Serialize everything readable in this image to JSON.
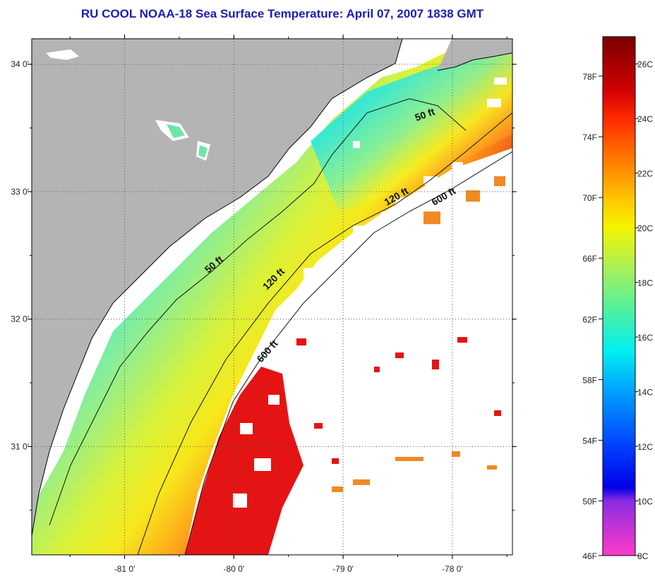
{
  "title": "RU COOL  NOAA-18  Sea Surface Temperature:  April 07, 2007 1838 GMT",
  "map": {
    "lon_range": [
      -81.85,
      -77.45
    ],
    "lat_range": [
      30.15,
      34.2
    ],
    "lon_ticks": [
      {
        "value": -81,
        "label": "-81 0'"
      },
      {
        "value": -80,
        "label": "-80 0'"
      },
      {
        "value": -79,
        "label": "-79 0'"
      },
      {
        "value": -78,
        "label": "-78 0'"
      }
    ],
    "lat_ticks": [
      {
        "value": 34,
        "label": "34 0'"
      },
      {
        "value": 33,
        "label": "33 0'"
      },
      {
        "value": 32,
        "label": "32 0'"
      },
      {
        "value": 31,
        "label": "31 0'"
      }
    ],
    "colors": {
      "land": "#b4b4b4",
      "cloud": "#ffffff",
      "cold_shelf": "#22e6e6",
      "mid_shelf": "#8cf08c",
      "outer_shelf": "#f5f522",
      "slope": "#ff9a1e",
      "gulf_stream": "#e81414",
      "offshore": "#f08a22"
    },
    "contours": [
      {
        "label": "50 ft"
      },
      {
        "label": "50 ft"
      },
      {
        "label": "120 ft"
      },
      {
        "label": "120 ft"
      },
      {
        "label": "600 ft"
      },
      {
        "label": "600 ft"
      }
    ]
  },
  "colorbar": {
    "fahrenheit_labels": [
      "78F",
      "74F",
      "70F",
      "66F",
      "62F",
      "58F",
      "54F",
      "50F",
      "46F"
    ],
    "celsius_labels": [
      "26C",
      "24C",
      "22C",
      "20C",
      "18C",
      "16C",
      "14C",
      "12C",
      "10C",
      "8C"
    ],
    "gradient_stops": [
      {
        "celsius": 27,
        "color": "#7a0000"
      },
      {
        "celsius": 25,
        "color": "#d40000"
      },
      {
        "celsius": 24,
        "color": "#ff2a00"
      },
      {
        "celsius": 22.5,
        "color": "#ff7a00"
      },
      {
        "celsius": 21,
        "color": "#ffc800"
      },
      {
        "celsius": 20,
        "color": "#f5f500"
      },
      {
        "celsius": 18.5,
        "color": "#a8f05a"
      },
      {
        "celsius": 17,
        "color": "#50f0a0"
      },
      {
        "celsius": 15.5,
        "color": "#00f0f0"
      },
      {
        "celsius": 14,
        "color": "#00a0ff"
      },
      {
        "celsius": 12,
        "color": "#0040ff"
      },
      {
        "celsius": 10.5,
        "color": "#0000e6"
      },
      {
        "celsius": 10,
        "color": "#8a2be2"
      },
      {
        "celsius": 8,
        "color": "#ff3cc8"
      }
    ]
  }
}
